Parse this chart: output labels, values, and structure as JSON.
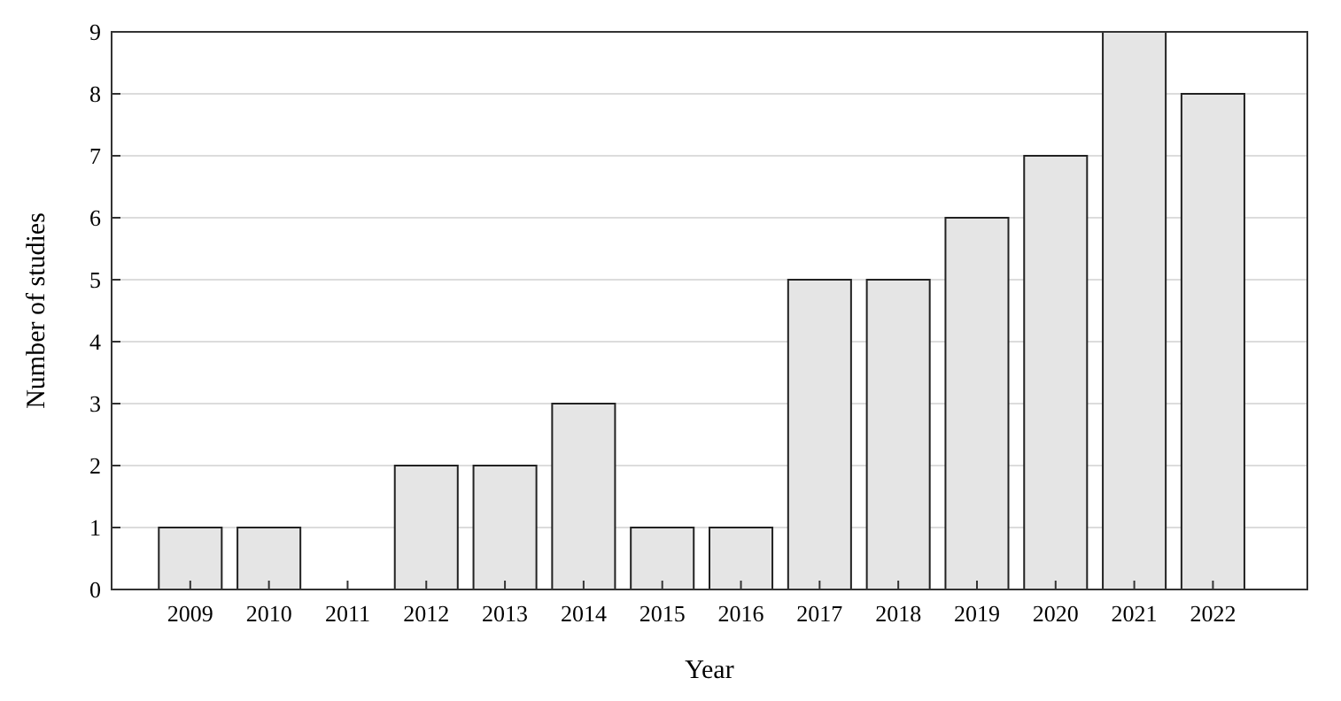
{
  "chart_data": {
    "type": "bar",
    "xlabel": "Year",
    "ylabel": "Number of studies",
    "categories": [
      "2009",
      "2010",
      "2011",
      "2012",
      "2013",
      "2014",
      "2015",
      "2016",
      "2017",
      "2018",
      "2019",
      "2020",
      "2021",
      "2022"
    ],
    "values": [
      1,
      1,
      0,
      2,
      2,
      3,
      1,
      1,
      5,
      5,
      6,
      7,
      9,
      8
    ],
    "color": "#e5e5e5",
    "ylim": [
      0,
      9
    ],
    "yticks": [
      0,
      1,
      2,
      3,
      4,
      5,
      6,
      7,
      8,
      9
    ],
    "grid": "y"
  }
}
